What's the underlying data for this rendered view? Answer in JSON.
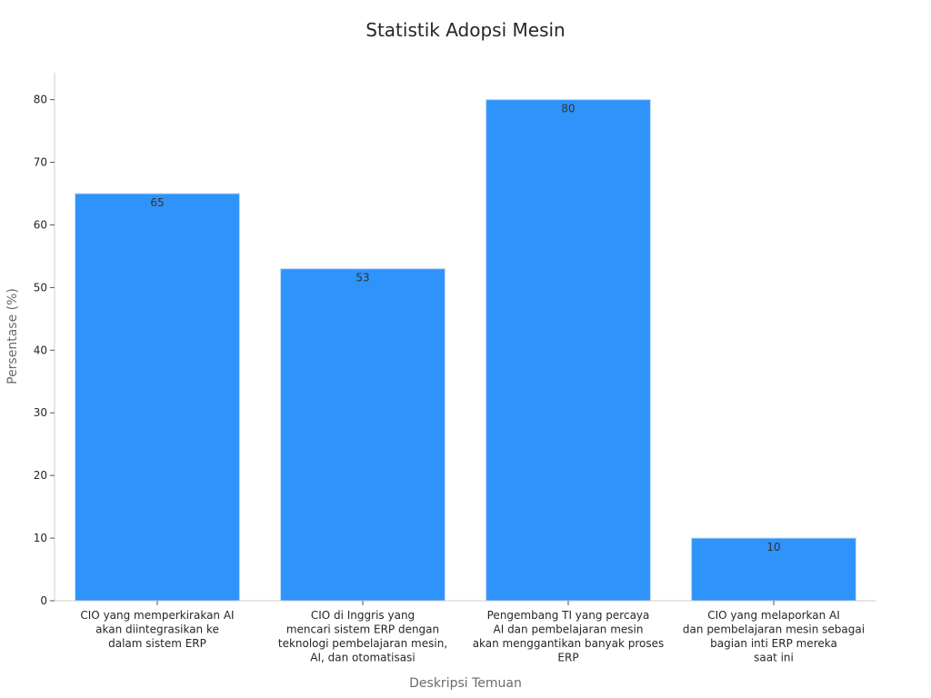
{
  "chart_data": {
    "type": "bar",
    "title": "Statistik Adopsi Mesin",
    "xlabel": "Deskripsi Temuan",
    "ylabel": "Persentase (%)",
    "ylim": [
      0,
      84.3
    ],
    "yticks": [
      0,
      10,
      20,
      30,
      40,
      50,
      60,
      70,
      80
    ],
    "grid": false,
    "categories": [
      [
        "CIO yang memperkirakan AI",
        "akan diintegrasikan ke",
        "dalam sistem ERP"
      ],
      [
        "CIO di Inggris yang",
        "mencari sistem ERP dengan",
        "teknologi pembelajaran mesin,",
        "AI, dan otomatisasi"
      ],
      [
        "Pengembang TI yang percaya",
        "AI dan pembelajaran mesin",
        "akan menggantikan banyak proses",
        "ERP"
      ],
      [
        "CIO yang melaporkan AI",
        "dan pembelajaran mesin sebagai",
        "bagian inti ERP mereka",
        "saat ini"
      ]
    ],
    "values": [
      65,
      53,
      80,
      10
    ],
    "data_labels": [
      "65",
      "53",
      "80",
      "10"
    ],
    "bar_color": "#2e93fa"
  }
}
